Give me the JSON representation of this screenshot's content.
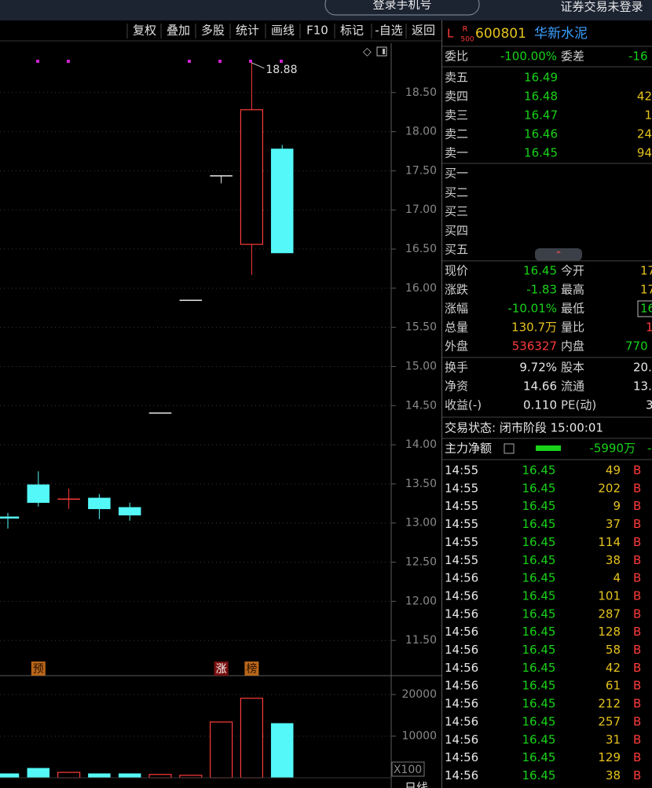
{
  "top_bar": {
    "login_button": "登录手机号",
    "status": "证券交易未登录"
  },
  "toolbar": [
    "复权",
    "叠加",
    "多股",
    "统计",
    "画线",
    "F10",
    "标记",
    "-自选",
    "返回"
  ],
  "chart_data": [
    {
      "type": "candlestick",
      "categories": [
        null,
        null,
        null,
        null,
        null,
        null,
        null,
        null,
        null,
        null
      ],
      "open": [
        13.08,
        13.49,
        13.31,
        13.32,
        13.2,
        14.41,
        15.85,
        17.44,
        16.56,
        17.78
      ],
      "high": [
        13.13,
        13.66,
        13.44,
        13.37,
        13.26,
        14.41,
        15.85,
        17.44,
        18.88,
        17.83
      ],
      "low": [
        12.93,
        13.21,
        13.18,
        13.05,
        13.03,
        14.41,
        15.85,
        17.34,
        16.17,
        16.45
      ],
      "close": [
        13.06,
        13.26,
        13.31,
        13.18,
        13.1,
        14.41,
        15.85,
        17.44,
        18.28,
        16.45
      ],
      "colors": [
        "#54f8f8",
        "#54f8f8",
        "#ff3b3b",
        "#54f8f8",
        "#54f8f8",
        "#e8e8e8",
        "#e8e8e8",
        "#e8e8e8",
        "#ff3b3b",
        "#54f8f8"
      ],
      "annotation": "18.88",
      "event_labels": [
        null,
        "预",
        null,
        null,
        null,
        null,
        null,
        "涨",
        "榜",
        null
      ],
      "ylim": [
        11.05,
        19.13
      ],
      "yticks": [
        {
          "value": 11.5,
          "label": "11.50"
        },
        {
          "value": 12,
          "label": "12.00"
        },
        {
          "value": 12.5,
          "label": "12.50"
        },
        {
          "value": 13,
          "label": "13.00"
        },
        {
          "value": 13.5,
          "label": "13.50"
        },
        {
          "value": 14,
          "label": "14.00"
        },
        {
          "value": 14.5,
          "label": "14.50"
        },
        {
          "value": 15,
          "label": "15.00"
        },
        {
          "value": 15.5,
          "label": "15.50"
        },
        {
          "value": 16,
          "label": "16.00"
        },
        {
          "value": 16.5,
          "label": "16.50"
        },
        {
          "value": 17,
          "label": "17.00"
        },
        {
          "value": 17.5,
          "label": "17.50"
        },
        {
          "value": 18,
          "label": "18.00"
        },
        {
          "value": 18.5,
          "label": "18.50"
        }
      ],
      "grid": true
    },
    {
      "type": "bar",
      "categories": [
        null,
        null,
        null,
        null,
        null,
        null,
        null,
        null,
        null,
        null
      ],
      "values": [
        1000,
        2300,
        1300,
        1000,
        1000,
        800,
        600,
        13400,
        19100,
        13070
      ],
      "colors": [
        "#54f8f8",
        "#54f8f8",
        "#ff3b3b",
        "#54f8f8",
        "#54f8f8",
        "#ff3b3b",
        "#ff3b3b",
        "#ff3b3b",
        "#ff3b3b",
        "#54f8f8"
      ],
      "unit_label": "X100",
      "period_label": "日线",
      "ylim": [
        0,
        23585
      ],
      "yticks": [
        10000,
        20000
      ],
      "grid": true
    }
  ],
  "quote": {
    "flag": "L",
    "badge_top": "R",
    "badge_bottom": "500",
    "code": "600801",
    "name": "华新水泥",
    "ratio_row": [
      "委比",
      "-100.00%",
      "委差",
      "-16"
    ],
    "sell": [
      {
        "label": "卖五",
        "price": "16.49"
      },
      {
        "label": "卖四",
        "price": "16.48",
        "volume": "42"
      },
      {
        "label": "卖三",
        "price": "16.47",
        "volume": "1"
      },
      {
        "label": "卖二",
        "price": "16.46",
        "volume": "24"
      },
      {
        "label": "卖一",
        "price": "16.45",
        "volume": "94"
      }
    ],
    "buy": [
      "买一",
      "买二",
      "买三",
      "买四",
      "买五"
    ],
    "stats": [
      [
        "现价",
        "16.45",
        "今开",
        "17"
      ],
      [
        "涨跌",
        "-1.83",
        "最高",
        "17"
      ],
      [
        "涨幅",
        "-10.01%",
        "最低",
        "16"
      ],
      [
        "总量",
        "130.7万",
        "量比",
        "1"
      ],
      [
        "外盘",
        "536327",
        "内盘",
        "770"
      ],
      [
        "换手",
        "9.72%",
        "股本",
        "20."
      ],
      [
        "净资",
        "14.66",
        "流通",
        "13."
      ],
      [
        "收益(-)",
        "0.110",
        "PE(动)",
        "3"
      ]
    ],
    "status": "交易状态: 闭市阶段 15:00:01",
    "main_flow": {
      "label": "主力净额",
      "value": "-5990万",
      "extra": "-"
    }
  },
  "trades": [
    [
      "14:55",
      "16.45",
      "49",
      "B"
    ],
    [
      "14:55",
      "16.45",
      "202",
      "B"
    ],
    [
      "14:55",
      "16.45",
      "9",
      "B"
    ],
    [
      "14:55",
      "16.45",
      "37",
      "B"
    ],
    [
      "14:55",
      "16.45",
      "114",
      "B"
    ],
    [
      "14:55",
      "16.45",
      "38",
      "B"
    ],
    [
      "14:56",
      "16.45",
      "4",
      "B"
    ],
    [
      "14:56",
      "16.45",
      "101",
      "B"
    ],
    [
      "14:56",
      "16.45",
      "287",
      "B"
    ],
    [
      "14:56",
      "16.45",
      "128",
      "B"
    ],
    [
      "14:56",
      "16.45",
      "58",
      "B"
    ],
    [
      "14:56",
      "16.45",
      "42",
      "B"
    ],
    [
      "14:56",
      "16.45",
      "61",
      "B"
    ],
    [
      "14:56",
      "16.45",
      "212",
      "B"
    ],
    [
      "14:56",
      "16.45",
      "257",
      "B"
    ],
    [
      "14:56",
      "16.45",
      "31",
      "B"
    ],
    [
      "14:56",
      "16.45",
      "129",
      "B"
    ],
    [
      "14:56",
      "16.45",
      "38",
      "B"
    ]
  ]
}
